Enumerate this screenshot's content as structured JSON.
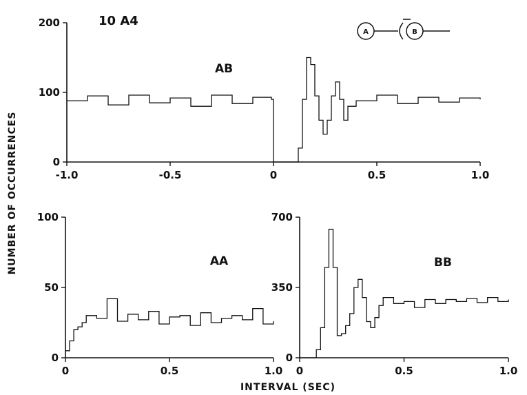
{
  "figure_id": "10 A4",
  "ylabel": "NUMBER OF OCCURRENCES",
  "xlabel": "INTERVAL (SEC)",
  "schematic": {
    "node_a": "A",
    "node_b": "B"
  },
  "chart_data": [
    {
      "id": "AB",
      "type": "line",
      "title": "AB",
      "xlim": [
        -1.0,
        1.0
      ],
      "ylim": [
        0,
        200
      ],
      "xticks": [
        -1.0,
        -0.5,
        0,
        0.5,
        1.0
      ],
      "xtick_labels": [
        "-1.0",
        "-0.5",
        "0",
        "0.5",
        "1.0"
      ],
      "yticks": [
        0,
        100,
        200
      ],
      "ytick_labels": [
        "0",
        "100",
        "200"
      ],
      "x": [
        -1.0,
        -0.9,
        -0.8,
        -0.7,
        -0.6,
        -0.5,
        -0.4,
        -0.3,
        -0.2,
        -0.1,
        -0.01,
        0.0,
        0.1,
        0.12,
        0.14,
        0.16,
        0.18,
        0.2,
        0.22,
        0.24,
        0.26,
        0.28,
        0.3,
        0.32,
        0.34,
        0.36,
        0.4,
        0.5,
        0.6,
        0.7,
        0.8,
        0.9,
        1.0
      ],
      "y": [
        88,
        95,
        82,
        96,
        85,
        92,
        80,
        96,
        84,
        93,
        90,
        0,
        0,
        20,
        90,
        150,
        140,
        95,
        60,
        40,
        60,
        95,
        115,
        90,
        60,
        80,
        88,
        96,
        84,
        93,
        86,
        92,
        90
      ]
    },
    {
      "id": "AA",
      "type": "line",
      "title": "AA",
      "xlim": [
        0,
        1.0
      ],
      "ylim": [
        0,
        100
      ],
      "xticks": [
        0,
        0.5,
        1.0
      ],
      "xtick_labels": [
        "0",
        "0.5",
        "1.0"
      ],
      "yticks": [
        0,
        50,
        100
      ],
      "ytick_labels": [
        "0",
        "50",
        "100"
      ],
      "x": [
        0.0,
        0.02,
        0.04,
        0.06,
        0.08,
        0.1,
        0.15,
        0.2,
        0.25,
        0.3,
        0.35,
        0.4,
        0.45,
        0.5,
        0.55,
        0.6,
        0.65,
        0.7,
        0.75,
        0.8,
        0.85,
        0.9,
        0.95,
        1.0
      ],
      "y": [
        5,
        12,
        20,
        22,
        25,
        30,
        28,
        42,
        26,
        31,
        27,
        33,
        24,
        29,
        30,
        23,
        32,
        25,
        28,
        30,
        27,
        35,
        24,
        26
      ]
    },
    {
      "id": "BB",
      "type": "line",
      "title": "BB",
      "xlim": [
        0,
        1.0
      ],
      "ylim": [
        0,
        700
      ],
      "xticks": [
        0,
        0.5,
        1.0
      ],
      "xtick_labels": [
        "0",
        "0.5",
        "1.0"
      ],
      "yticks": [
        0,
        350,
        700
      ],
      "ytick_labels": [
        "0",
        "350",
        "700"
      ],
      "x": [
        0.0,
        0.06,
        0.08,
        0.1,
        0.12,
        0.14,
        0.16,
        0.18,
        0.2,
        0.22,
        0.24,
        0.26,
        0.28,
        0.3,
        0.32,
        0.34,
        0.36,
        0.38,
        0.4,
        0.45,
        0.5,
        0.55,
        0.6,
        0.65,
        0.7,
        0.75,
        0.8,
        0.85,
        0.9,
        0.95,
        1.0
      ],
      "y": [
        0,
        0,
        40,
        150,
        450,
        640,
        450,
        110,
        120,
        160,
        220,
        350,
        390,
        300,
        180,
        150,
        200,
        260,
        300,
        270,
        280,
        250,
        290,
        270,
        290,
        280,
        295,
        275,
        300,
        280,
        290
      ]
    }
  ]
}
